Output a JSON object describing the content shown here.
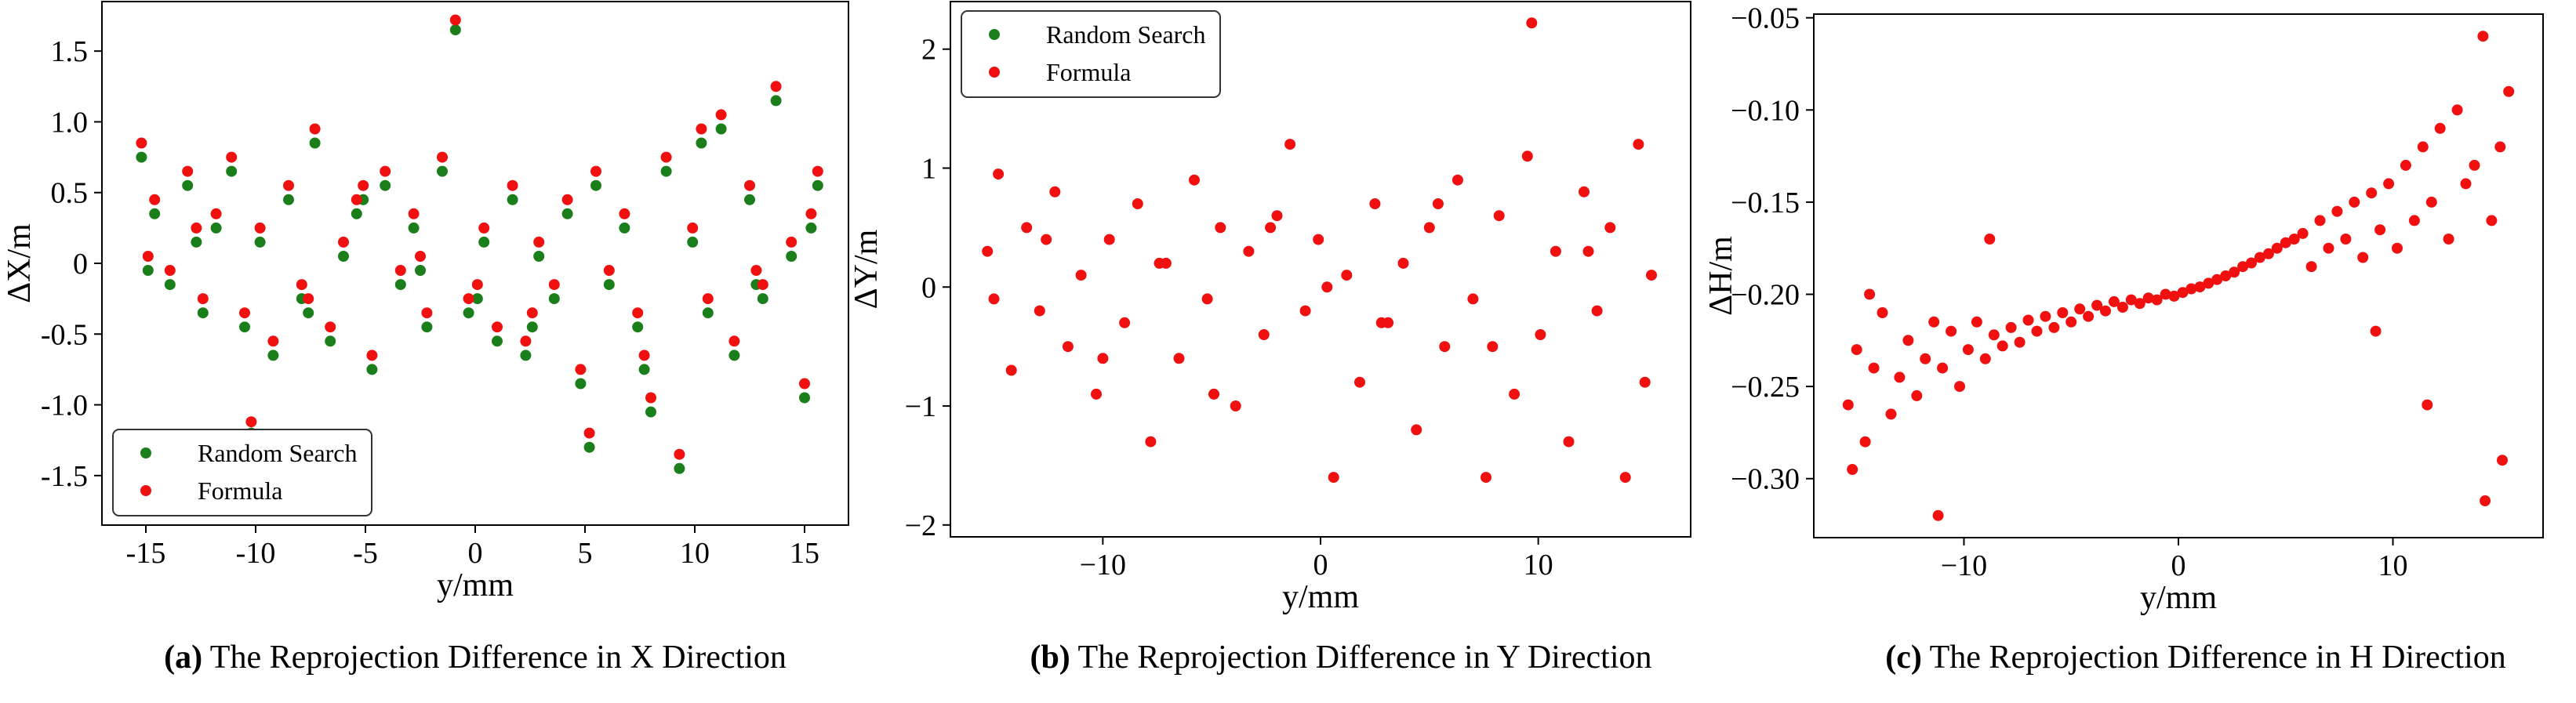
{
  "colors": {
    "random_search": "#1a7f1a",
    "formula": "#f01010",
    "axis": "#000000"
  },
  "chart_data": [
    {
      "type": "scatter",
      "caption_label": "(a)",
      "caption_text": "The Reprojection Difference in X Direction",
      "xlabel": "y/mm",
      "ylabel": "ΔX/m",
      "xlim": [
        -17,
        17
      ],
      "ylim": [
        -1.85,
        1.85
      ],
      "xticks": [
        -15,
        -10,
        -5,
        0,
        5,
        10,
        15
      ],
      "xtick_labels": [
        "-15",
        "-10",
        "-5",
        "0",
        "5",
        "10",
        "15"
      ],
      "yticks": [
        -1.5,
        -1.0,
        -0.5,
        0,
        0.5,
        1.0,
        1.5
      ],
      "ytick_labels": [
        "-1.5",
        "-1.0",
        "-0.5",
        "0",
        "0.5",
        "1.0",
        "1.5"
      ],
      "legend": {
        "location": "lower-left",
        "entries": [
          "Random Search",
          "Formula"
        ]
      },
      "grid": false,
      "series": [
        {
          "name": "Random Search",
          "color": "#1a7f1a",
          "x": [
            -15.2,
            -14.6,
            -13.9,
            -13.1,
            -12.4,
            -11.8,
            -11.1,
            -10.5,
            -9.8,
            -9.2,
            -8.5,
            -7.9,
            -7.3,
            -6.6,
            -6.0,
            -5.4,
            -4.7,
            -4.1,
            -3.4,
            -2.8,
            -2.2,
            -1.5,
            -0.9,
            -0.3,
            0.4,
            1.0,
            1.7,
            2.3,
            2.9,
            3.6,
            4.2,
            4.8,
            5.5,
            6.1,
            6.8,
            7.4,
            8.0,
            8.7,
            9.3,
            9.9,
            10.6,
            11.2,
            11.8,
            12.5,
            13.1,
            13.7,
            14.4,
            15.0,
            15.6,
            -14.9,
            -12.7,
            -10.2,
            -7.6,
            -5.1,
            -2.5,
            0.1,
            2.6,
            5.2,
            7.7,
            10.3,
            12.8,
            15.3
          ],
          "y": [
            0.75,
            0.35,
            -0.15,
            0.55,
            -0.35,
            0.25,
            0.65,
            -0.45,
            0.15,
            -0.65,
            0.45,
            -0.25,
            0.85,
            -0.55,
            0.05,
            0.35,
            -0.75,
            0.55,
            -0.15,
            0.25,
            -0.45,
            0.65,
            1.65,
            -0.35,
            0.15,
            -0.55,
            0.45,
            -0.65,
            0.05,
            -0.25,
            0.35,
            -0.85,
            0.55,
            -0.15,
            0.25,
            -0.45,
            -1.05,
            0.65,
            -1.45,
            0.15,
            -0.35,
            0.95,
            -0.65,
            0.45,
            -0.25,
            1.15,
            0.05,
            -0.95,
            0.55,
            -0.05,
            0.15,
            -1.2,
            -0.35,
            0.45,
            -0.05,
            -0.25,
            -0.45,
            -1.3,
            -0.75,
            0.85,
            -0.15,
            0.25
          ]
        },
        {
          "name": "Formula",
          "color": "#f01010",
          "x": [
            -15.2,
            -14.6,
            -13.9,
            -13.1,
            -12.4,
            -11.8,
            -11.1,
            -10.5,
            -9.8,
            -9.2,
            -8.5,
            -7.9,
            -7.3,
            -6.6,
            -6.0,
            -5.4,
            -4.7,
            -4.1,
            -3.4,
            -2.8,
            -2.2,
            -1.5,
            -0.9,
            -0.3,
            0.4,
            1.0,
            1.7,
            2.3,
            2.9,
            3.6,
            4.2,
            4.8,
            5.5,
            6.1,
            6.8,
            7.4,
            8.0,
            8.7,
            9.3,
            9.9,
            10.6,
            11.2,
            11.8,
            12.5,
            13.1,
            13.7,
            14.4,
            15.0,
            15.6,
            -14.9,
            -12.7,
            -10.2,
            -7.6,
            -5.1,
            -2.5,
            0.1,
            2.6,
            5.2,
            7.7,
            10.3,
            12.8,
            15.3
          ],
          "y": [
            0.85,
            0.45,
            -0.05,
            0.65,
            -0.25,
            0.35,
            0.75,
            -0.35,
            0.25,
            -0.55,
            0.55,
            -0.15,
            0.95,
            -0.45,
            0.15,
            0.45,
            -0.65,
            0.65,
            -0.05,
            0.35,
            -0.35,
            0.75,
            1.72,
            -0.25,
            0.25,
            -0.45,
            0.55,
            -0.55,
            0.15,
            -0.15,
            0.45,
            -0.75,
            0.65,
            -0.05,
            0.35,
            -0.35,
            -0.95,
            0.75,
            -1.35,
            0.25,
            -0.25,
            1.05,
            -0.55,
            0.55,
            -0.15,
            1.25,
            0.15,
            -0.85,
            0.65,
            0.05,
            0.25,
            -1.12,
            -0.25,
            0.55,
            0.05,
            -0.15,
            -0.35,
            -1.2,
            -0.65,
            0.95,
            -0.05,
            0.35
          ]
        }
      ]
    },
    {
      "type": "scatter",
      "caption_label": "(b)",
      "caption_text": "The Reprojection Difference in Y Direction",
      "xlabel": "y/mm",
      "ylabel": "ΔY/m",
      "xlim": [
        -17,
        17
      ],
      "ylim": [
        -2.1,
        2.4
      ],
      "xticks": [
        -10,
        0,
        10
      ],
      "xtick_labels": [
        "−10",
        "0",
        "10"
      ],
      "yticks": [
        -2,
        -1,
        0,
        1,
        2
      ],
      "ytick_labels": [
        "−2",
        "−1",
        "0",
        "1",
        "2"
      ],
      "legend": {
        "location": "top-left",
        "entries": [
          "Random Search",
          "Formula"
        ]
      },
      "grid": false,
      "series": [
        {
          "name": "Random Search",
          "color": "#1a7f1a",
          "x": [],
          "y": []
        },
        {
          "name": "Formula",
          "color": "#f01010",
          "x": [
            -15.3,
            -14.8,
            -14.2,
            -13.5,
            -12.9,
            -12.2,
            -11.6,
            -11.0,
            -10.3,
            -9.7,
            -9.0,
            -8.4,
            -7.8,
            -7.1,
            -6.5,
            -5.8,
            -5.2,
            -4.6,
            -3.9,
            -3.3,
            -2.6,
            -2.0,
            -1.4,
            -0.7,
            -0.1,
            0.6,
            1.2,
            1.8,
            2.5,
            3.1,
            3.8,
            4.4,
            5.0,
            5.7,
            6.3,
            7.0,
            7.6,
            8.2,
            8.9,
            9.5,
            10.1,
            10.8,
            11.4,
            12.1,
            12.7,
            13.3,
            14.0,
            14.6,
            15.2,
            -15.0,
            -12.6,
            -10.0,
            -7.4,
            -4.9,
            -2.3,
            0.3,
            2.8,
            5.4,
            7.9,
            9.7,
            12.3,
            14.9
          ],
          "y": [
            0.3,
            0.95,
            -0.7,
            0.5,
            -0.2,
            0.8,
            -0.5,
            0.1,
            -0.9,
            0.4,
            -0.3,
            0.7,
            -1.3,
            0.2,
            -0.6,
            0.9,
            -0.1,
            0.5,
            -1.0,
            0.3,
            -0.4,
            0.6,
            1.2,
            -0.2,
            0.4,
            -1.6,
            0.1,
            -0.8,
            0.7,
            -0.3,
            0.2,
            -1.2,
            0.5,
            -0.5,
            0.9,
            -0.1,
            -1.6,
            0.6,
            -0.9,
            1.1,
            -0.4,
            0.3,
            -1.3,
            0.8,
            -0.2,
            0.5,
            -1.6,
            1.2,
            0.1,
            -0.1,
            0.4,
            -0.6,
            0.2,
            -0.9,
            0.5,
            0.0,
            -0.3,
            0.7,
            -0.5,
            2.22,
            0.3,
            -0.8
          ]
        }
      ]
    },
    {
      "type": "scatter",
      "caption_label": "(c)",
      "caption_text": "The Reprojection Difference in H Direction",
      "xlabel": "y/mm",
      "ylabel": "ΔH/m",
      "xlim": [
        -17,
        17
      ],
      "ylim": [
        -0.332,
        -0.048
      ],
      "xticks": [
        -10,
        0,
        10
      ],
      "xtick_labels": [
        "−10",
        "0",
        "10"
      ],
      "yticks": [
        -0.3,
        -0.25,
        -0.2,
        -0.15,
        -0.1,
        -0.05
      ],
      "ytick_labels": [
        "−0.30",
        "−0.25",
        "−0.20",
        "−0.15",
        "−0.10",
        "−0.05"
      ],
      "legend": null,
      "grid": false,
      "series": [
        {
          "name": "",
          "color": "#f01010",
          "x": [
            -15.4,
            -15.0,
            -14.6,
            -14.2,
            -13.8,
            -13.4,
            -13.0,
            -12.6,
            -12.2,
            -11.8,
            -11.4,
            -11.0,
            -10.6,
            -10.2,
            -9.8,
            -9.4,
            -9.0,
            -8.6,
            -8.2,
            -7.8,
            -7.4,
            -7.0,
            -6.6,
            -6.2,
            -5.8,
            -5.4,
            -5.0,
            -4.6,
            -4.2,
            -3.8,
            -3.4,
            -3.0,
            -2.6,
            -2.2,
            -1.8,
            -1.4,
            -1.0,
            -0.6,
            -0.2,
            0.2,
            0.6,
            1.0,
            1.4,
            1.8,
            2.2,
            2.6,
            3.0,
            3.4,
            3.8,
            4.2,
            4.6,
            5.0,
            5.4,
            5.8,
            6.2,
            6.6,
            7.0,
            7.4,
            7.8,
            8.2,
            8.6,
            9.0,
            9.4,
            9.8,
            10.2,
            10.6,
            11.0,
            11.4,
            11.8,
            12.2,
            12.6,
            13.0,
            13.4,
            13.8,
            14.2,
            14.6,
            15.0,
            15.4,
            -15.2,
            -14.4,
            -11.2,
            -8.8,
            9.2,
            11.6,
            14.3,
            15.1
          ],
          "y": [
            -0.26,
            -0.23,
            -0.28,
            -0.24,
            -0.21,
            -0.265,
            -0.245,
            -0.225,
            -0.255,
            -0.235,
            -0.215,
            -0.24,
            -0.22,
            -0.25,
            -0.23,
            -0.215,
            -0.235,
            -0.222,
            -0.228,
            -0.218,
            -0.226,
            -0.214,
            -0.22,
            -0.212,
            -0.218,
            -0.21,
            -0.215,
            -0.208,
            -0.212,
            -0.206,
            -0.209,
            -0.204,
            -0.207,
            -0.203,
            -0.205,
            -0.202,
            -0.203,
            -0.2,
            -0.201,
            -0.199,
            -0.197,
            -0.196,
            -0.194,
            -0.192,
            -0.19,
            -0.188,
            -0.185,
            -0.183,
            -0.18,
            -0.178,
            -0.175,
            -0.172,
            -0.17,
            -0.167,
            -0.185,
            -0.16,
            -0.175,
            -0.155,
            -0.17,
            -0.15,
            -0.18,
            -0.145,
            -0.165,
            -0.14,
            -0.175,
            -0.13,
            -0.16,
            -0.12,
            -0.15,
            -0.11,
            -0.17,
            -0.1,
            -0.14,
            -0.13,
            -0.06,
            -0.16,
            -0.12,
            -0.09,
            -0.295,
            -0.2,
            -0.32,
            -0.17,
            -0.22,
            -0.26,
            -0.312,
            -0.29
          ]
        }
      ]
    }
  ]
}
